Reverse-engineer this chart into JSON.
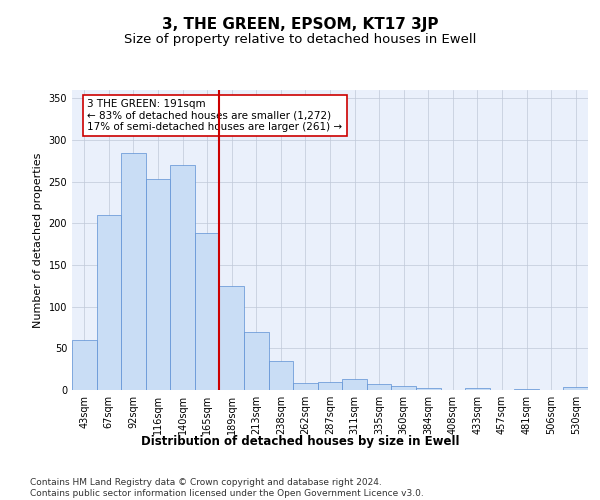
{
  "title": "3, THE GREEN, EPSOM, KT17 3JP",
  "subtitle": "Size of property relative to detached houses in Ewell",
  "xlabel": "Distribution of detached houses by size in Ewell",
  "ylabel": "Number of detached properties",
  "bar_color": "#c9ddf5",
  "bar_edge_color": "#5b8fd4",
  "categories": [
    "43sqm",
    "67sqm",
    "92sqm",
    "116sqm",
    "140sqm",
    "165sqm",
    "189sqm",
    "213sqm",
    "238sqm",
    "262sqm",
    "287sqm",
    "311sqm",
    "335sqm",
    "360sqm",
    "384sqm",
    "408sqm",
    "433sqm",
    "457sqm",
    "481sqm",
    "506sqm",
    "530sqm"
  ],
  "values": [
    60,
    210,
    285,
    253,
    270,
    188,
    125,
    70,
    35,
    8,
    10,
    13,
    7,
    5,
    3,
    0,
    3,
    0,
    1,
    0,
    4
  ],
  "vline_index": 6,
  "vline_color": "#cc0000",
  "annotation_line1": "3 THE GREEN: 191sqm",
  "annotation_line2": "← 83% of detached houses are smaller (1,272)",
  "annotation_line3": "17% of semi-detached houses are larger (261) →",
  "annotation_box_color": "#ffffff",
  "annotation_box_edge": "#cc0000",
  "ylim": [
    0,
    360
  ],
  "yticks": [
    0,
    50,
    100,
    150,
    200,
    250,
    300,
    350
  ],
  "bg_color": "#eaf0fb",
  "footer": "Contains HM Land Registry data © Crown copyright and database right 2024.\nContains public sector information licensed under the Open Government Licence v3.0.",
  "title_fontsize": 11,
  "subtitle_fontsize": 9.5,
  "xlabel_fontsize": 8.5,
  "ylabel_fontsize": 8,
  "tick_fontsize": 7,
  "annotation_fontsize": 7.5,
  "footer_fontsize": 6.5
}
